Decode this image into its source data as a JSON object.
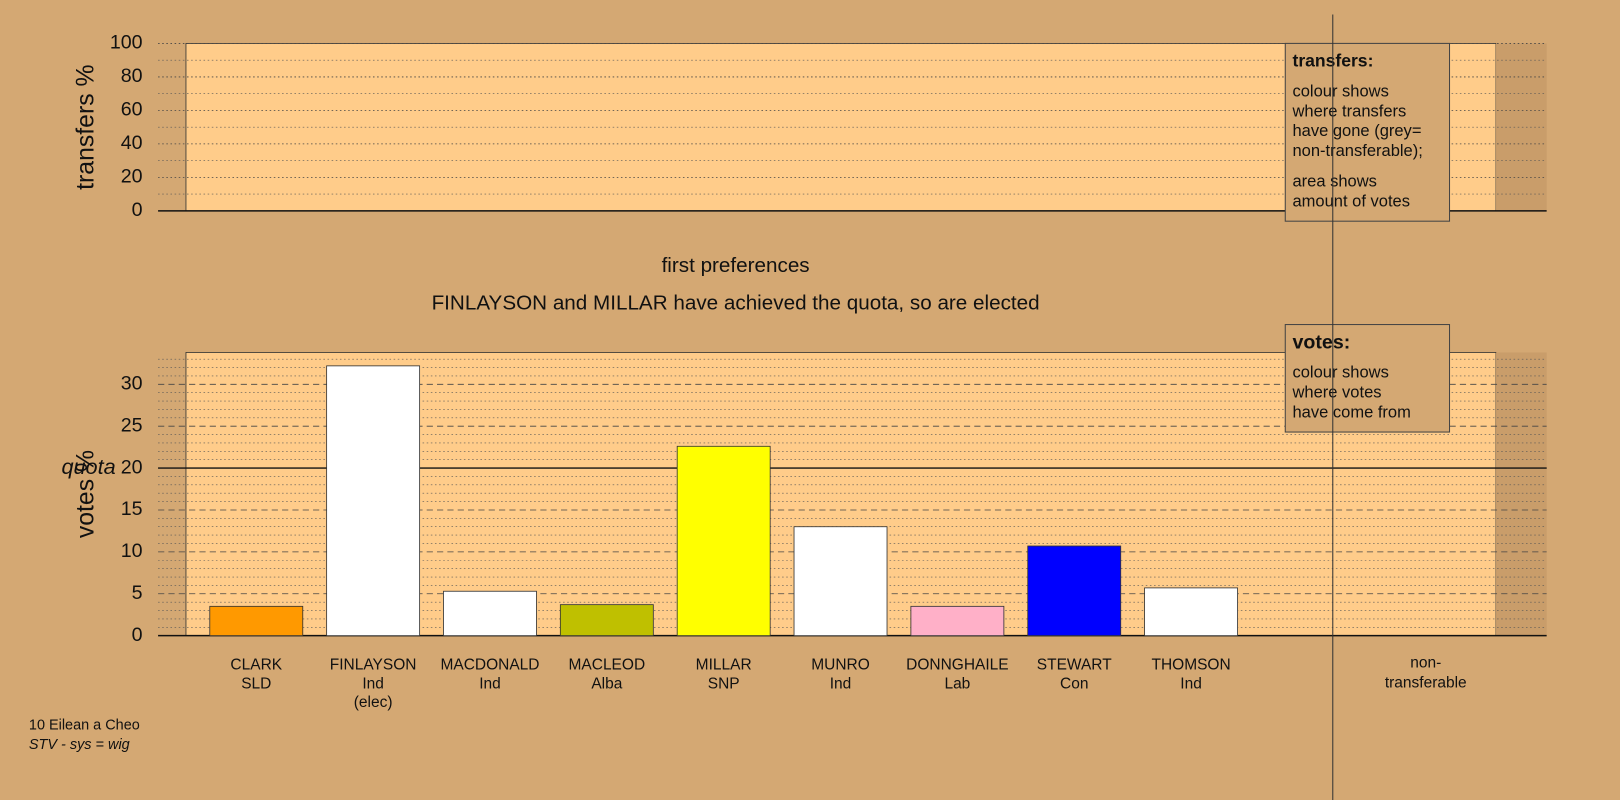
{
  "chart_data": [
    {
      "type": "bar",
      "y_label": "transfers %",
      "ylim": [
        0,
        100
      ],
      "yticks": [
        0,
        20,
        40,
        60,
        80,
        100
      ],
      "minor_grid_step": 10,
      "categories": [],
      "values": [],
      "legend": {
        "title": "transfers:",
        "paragraphs": [
          [
            "colour shows",
            "where transfers",
            "have gone (grey=",
            "non-transferable);"
          ],
          [
            "area shows",
            "amount of votes"
          ]
        ]
      }
    },
    {
      "type": "bar",
      "y_label": "votes %",
      "ylim": [
        0,
        33.8
      ],
      "yticks": [
        0,
        5,
        10,
        15,
        20,
        25,
        30
      ],
      "minor_grid_step": 1,
      "quota": {
        "value": 20,
        "label": "quota"
      },
      "categories": [
        "CLARK",
        "FINLAYSON",
        "MACDONALD",
        "MACLEOD",
        "MILLAR",
        "MUNRO",
        "DONNGHAILE",
        "STEWART",
        "THOMSON"
      ],
      "parties": [
        "SLD",
        "Ind",
        "Ind",
        "Alba",
        "SNP",
        "Ind",
        "Lab",
        "Con",
        "Ind"
      ],
      "notes": [
        null,
        "(elec)",
        null,
        null,
        null,
        null,
        null,
        null,
        null
      ],
      "values": [
        3.5,
        32.2,
        5.3,
        3.7,
        22.6,
        13.0,
        3.5,
        10.7,
        5.7
      ],
      "colors": [
        "#ff9900",
        "#ffffff",
        "#ffffff",
        "#bfc000",
        "#ffff00",
        "#ffffff",
        "#ffb0c8",
        "#0000ff",
        "#ffffff"
      ],
      "non_transferable": [
        "non-",
        "transferable"
      ],
      "legend": {
        "title": "votes:",
        "paragraphs": [
          [
            "colour shows",
            "where votes",
            "have come from"
          ]
        ]
      }
    }
  ],
  "subtitle": "first preferences",
  "annotation": "FINLAYSON and MILLAR have achieved the quota, so are elected",
  "footer": [
    "10 Eilean a Cheo",
    "STV - sys = wig"
  ]
}
